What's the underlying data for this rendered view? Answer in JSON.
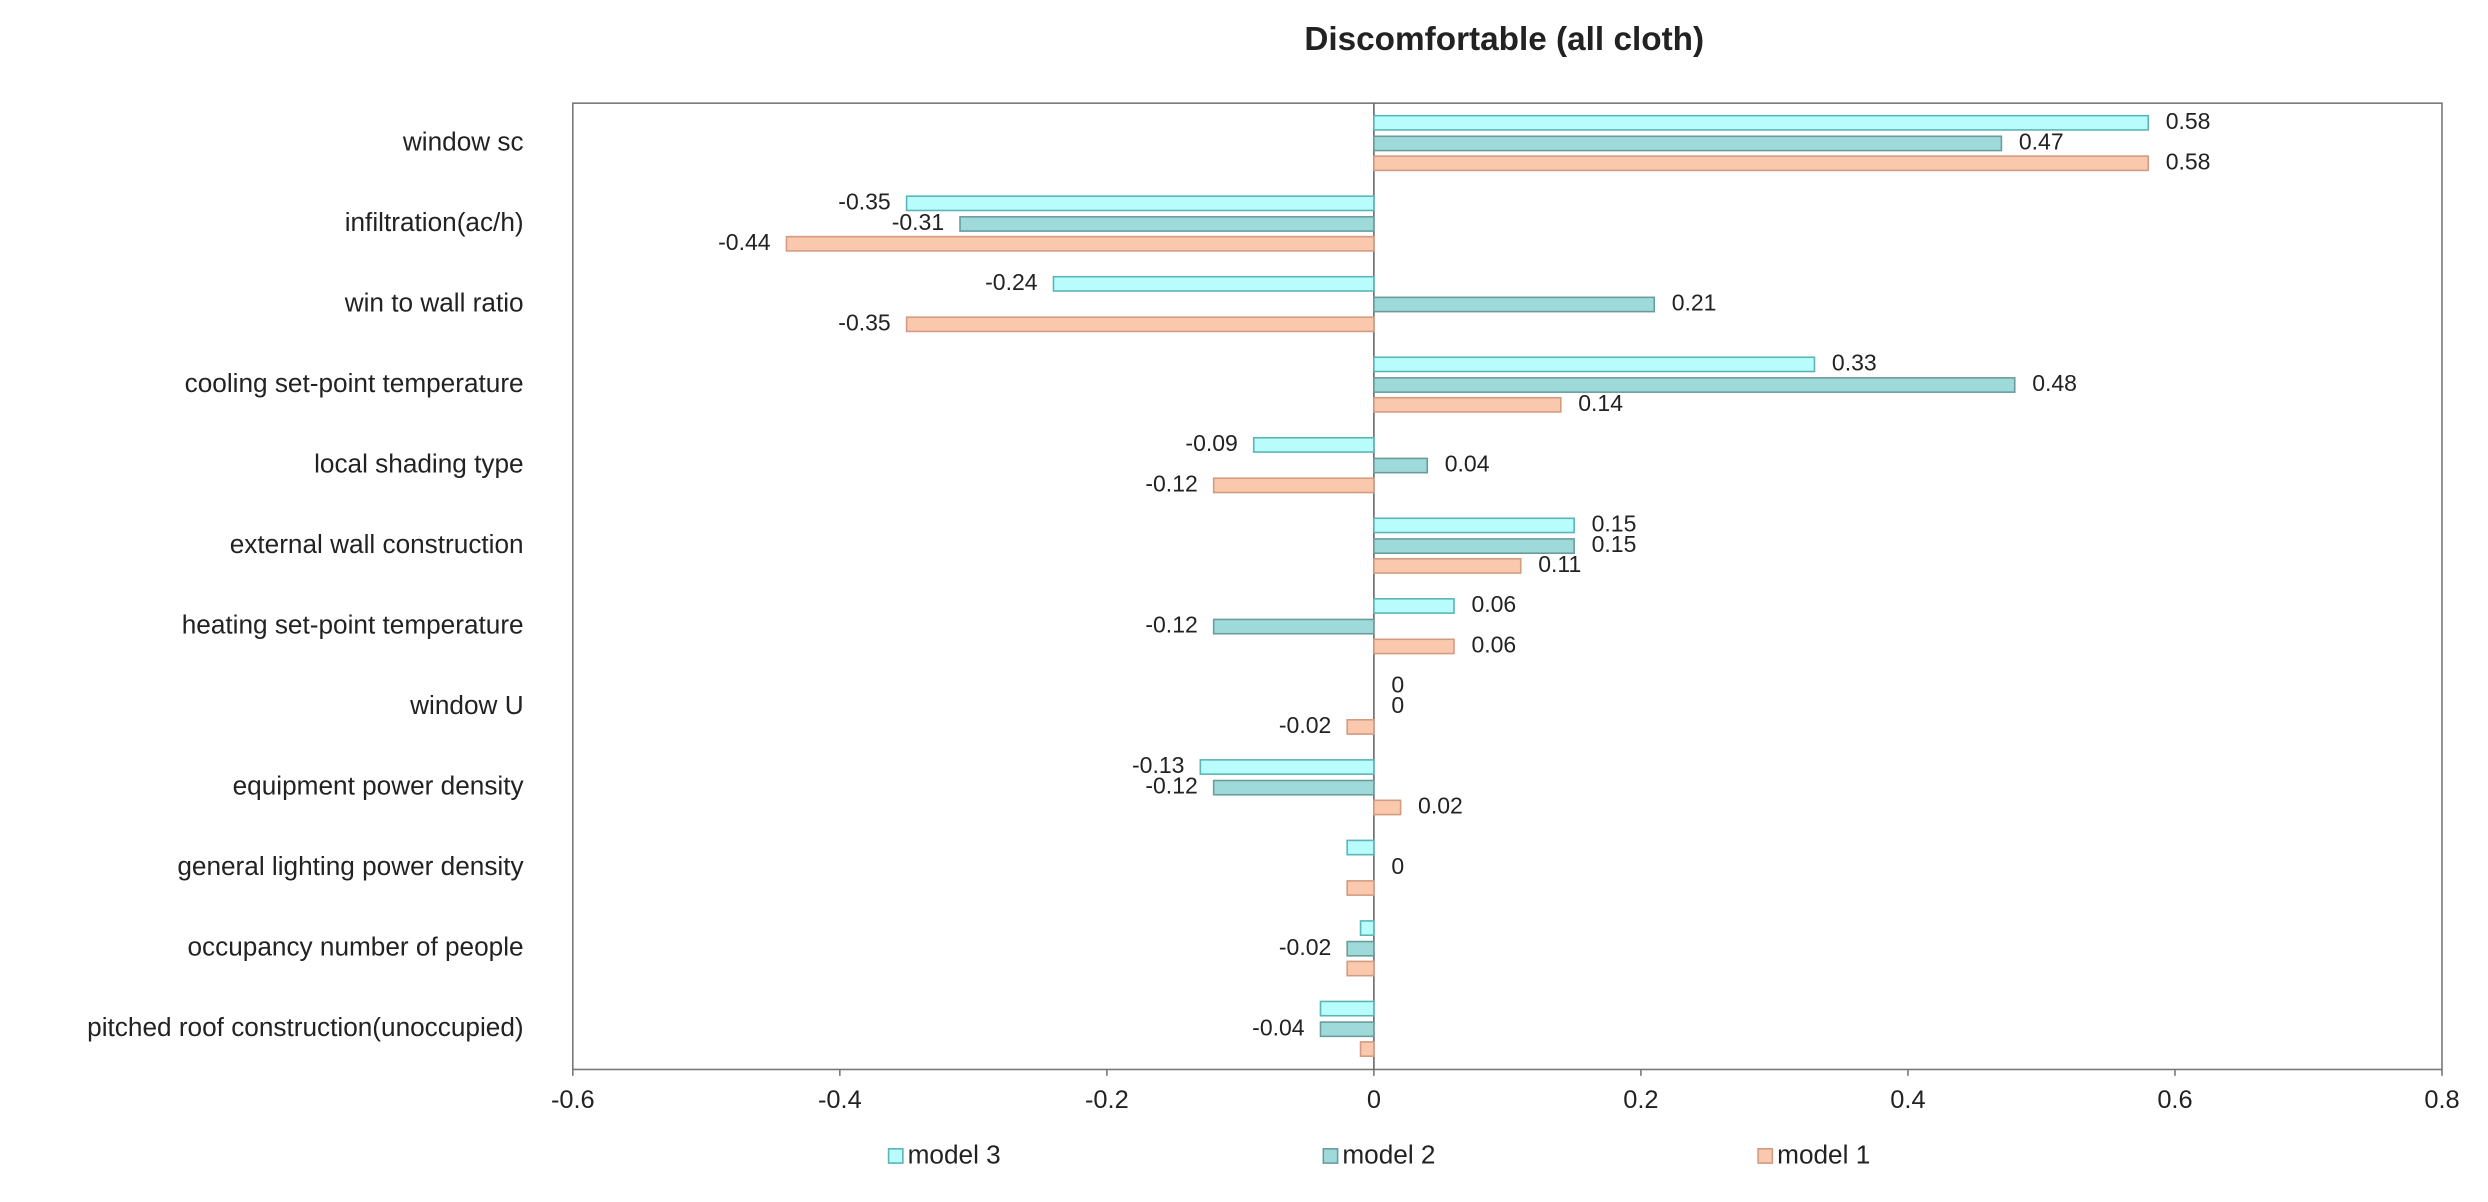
{
  "chart_data": {
    "type": "hbar",
    "title": "Discomfortable (all cloth)",
    "categories": [
      "window sc",
      "infiltration(ac/h)",
      "win to wall ratio",
      "cooling set-point temperature",
      "local shading type",
      "external wall construction",
      "heating set-point temperature",
      "window U",
      "equipment power density",
      "general lighting power density",
      "occupancy number of people",
      "pitched roof construction(unoccupied)"
    ],
    "series": [
      {
        "name": "model 3",
        "color": "#b8fcfc",
        "stroke": "#5ab4b8",
        "values": [
          0.58,
          -0.35,
          -0.24,
          0.33,
          -0.09,
          0.15,
          0.06,
          0,
          -0.13,
          -0.02,
          -0.01,
          -0.04
        ],
        "value_labels": [
          "0.58",
          "-0.35",
          "-0.24",
          "0.33",
          "-0.09",
          "0.15",
          "0.06",
          "0",
          "-0.13",
          null,
          null,
          null
        ]
      },
      {
        "name": "model 2",
        "color": "#9fdada",
        "stroke": "#6a9c9c",
        "values": [
          0.47,
          -0.31,
          0.21,
          0.48,
          0.04,
          0.15,
          -0.12,
          0,
          -0.12,
          0,
          -0.02,
          -0.04
        ],
        "value_labels": [
          "0.47",
          "-0.31",
          "0.21",
          "0.48",
          "0.04",
          "0.15",
          "-0.12",
          "0",
          "-0.12",
          "0",
          "-0.02",
          "-0.04"
        ]
      },
      {
        "name": "model 1",
        "color": "#f9c8ad",
        "stroke": "#d39b80",
        "values": [
          0.58,
          -0.44,
          -0.35,
          0.14,
          -0.12,
          0.11,
          0.06,
          -0.02,
          0.02,
          -0.02,
          -0.02,
          -0.01
        ],
        "value_labels": [
          "0.58",
          "-0.44",
          "-0.35",
          "0.14",
          "-0.12",
          "0.11",
          "0.06",
          "-0.02",
          "0.02",
          null,
          null,
          null
        ]
      }
    ],
    "xlim": [
      -0.6,
      0.8
    ],
    "xticks": [
      -0.6,
      -0.4,
      -0.2,
      0,
      0.2,
      0.4,
      0.6,
      0.8
    ]
  }
}
